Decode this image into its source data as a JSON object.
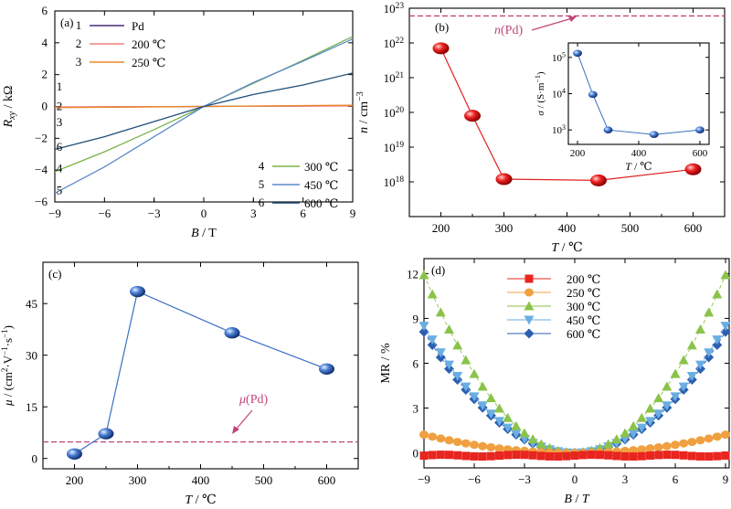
{
  "chart_data": [
    {
      "panel": "(a)",
      "type": "line",
      "xlabel": "B / T",
      "ylabel": "Rxy / kΩ",
      "xlim": [
        -9,
        9
      ],
      "ylim": [
        -6,
        6
      ],
      "xticks": [
        "−9",
        "−6",
        "−3",
        "0",
        "3",
        "6",
        "9"
      ],
      "yticks": [
        "−6",
        "−4",
        "−2",
        "0",
        "2",
        "4",
        "6"
      ],
      "legend_placement": "top-left and bottom-right",
      "series": [
        {
          "id": "1",
          "name": "Pd",
          "color": "#4a2c7c",
          "x": [
            -9,
            -6,
            -3,
            0,
            3,
            6,
            9
          ],
          "y": [
            -0.05,
            -0.03,
            -0.02,
            0,
            0.02,
            0.03,
            0.05
          ]
        },
        {
          "id": "2",
          "name": "200 ℃",
          "color": "#f08080",
          "x": [
            -9,
            -6,
            -3,
            0,
            3,
            6,
            9
          ],
          "y": [
            -0.03,
            -0.02,
            -0.01,
            0,
            0.01,
            0.02,
            0.03
          ]
        },
        {
          "id": "3",
          "name": "250 ℃",
          "color": "#e8882a",
          "x": [
            -9,
            -6,
            -3,
            0,
            3,
            6,
            9
          ],
          "y": [
            -0.08,
            -0.05,
            -0.03,
            0,
            0.03,
            0.06,
            0.08
          ]
        },
        {
          "id": "4",
          "name": "300 ℃",
          "color": "#7ab34a",
          "x": [
            -9,
            -6,
            -3,
            0,
            3,
            6,
            9
          ],
          "y": [
            -4.1,
            -2.85,
            -1.45,
            0,
            1.45,
            2.9,
            4.4
          ]
        },
        {
          "id": "5",
          "name": "450 ℃",
          "color": "#5b8ac7",
          "x": [
            -9,
            -6,
            -3,
            0,
            3,
            6,
            9
          ],
          "y": [
            -5.45,
            -3.8,
            -1.9,
            0,
            1.5,
            2.85,
            4.25
          ]
        },
        {
          "id": "6",
          "name": "600 ℃",
          "color": "#1f4e79",
          "x": [
            -9,
            -6,
            -3,
            0,
            3,
            6,
            9
          ],
          "y": [
            -2.7,
            -1.9,
            -0.95,
            0,
            0.75,
            1.35,
            2.1
          ]
        }
      ],
      "curve_labels": [
        "1",
        "2",
        "3",
        "4",
        "5",
        "6"
      ],
      "legend": [
        {
          "num": "1",
          "text": "Pd"
        },
        {
          "num": "2",
          "text": "200 ℃"
        },
        {
          "num": "3",
          "text": "250 ℃"
        },
        {
          "num": "4",
          "text": "300 ℃"
        },
        {
          "num": "5",
          "text": "450 ℃"
        },
        {
          "num": "6",
          "text": "600 ℃"
        }
      ]
    },
    {
      "panel": "(b)",
      "type": "scatter",
      "xlabel": "T / ℃",
      "ylabel": "n / cm⁻³",
      "yscale": "log",
      "xlim": [
        150,
        650
      ],
      "ylim": [
        1e+17,
        1e+23
      ],
      "xticks": [
        "200",
        "300",
        "400",
        "500",
        "600"
      ],
      "yticks": [
        {
          "base": "10",
          "exp": "18"
        },
        {
          "base": "10",
          "exp": "19"
        },
        {
          "base": "10",
          "exp": "20"
        },
        {
          "base": "10",
          "exp": "21"
        },
        {
          "base": "10",
          "exp": "22"
        },
        {
          "base": "10",
          "exp": "23"
        }
      ],
      "series": [
        {
          "name": "n",
          "color": "#e02020",
          "x": [
            200,
            250,
            300,
            450,
            600
          ],
          "y": [
            7e+21,
            8e+19,
            1.2e+18,
            1.1e+18,
            2.3e+18
          ]
        }
      ],
      "reference_line": {
        "label_prefix": "n",
        "label_suffix": "(Pd)",
        "value": 6e+22,
        "color": "#c2457a"
      },
      "inset": {
        "type": "scatter",
        "xlabel": "T / ℃",
        "ylabel": "σ / (S·m⁻¹)",
        "yscale": "log",
        "xlim": [
          170,
          630
        ],
        "ylim": [
          400,
          250000
        ],
        "xticks": [
          "200",
          "400",
          "600"
        ],
        "yticks": [
          {
            "base": "10",
            "exp": "3"
          },
          {
            "base": "10",
            "exp": "4"
          },
          {
            "base": "10",
            "exp": "5"
          }
        ],
        "series": [
          {
            "name": "σ",
            "color": "#3a6fc4",
            "x": [
              200,
              250,
              300,
              450,
              600
            ],
            "y": [
              130000,
              9500,
              1000,
              750,
              1000
            ]
          }
        ]
      }
    },
    {
      "panel": "(c)",
      "type": "scatter",
      "xlabel": "T / ℃",
      "ylabel": "μ / (cm²·V⁻¹·s⁻¹)",
      "xlim": [
        150,
        650
      ],
      "ylim": [
        -3,
        57
      ],
      "xticks": [
        "200",
        "300",
        "400",
        "500",
        "600"
      ],
      "yticks": [
        "0",
        "15",
        "30",
        "45"
      ],
      "series": [
        {
          "name": "μ",
          "color": "#3a6fc4",
          "x": [
            200,
            250,
            300,
            450,
            600
          ],
          "y": [
            1.3,
            7.2,
            48.5,
            36.5,
            26
          ]
        }
      ],
      "reference_line": {
        "label_prefix": "μ",
        "label_suffix": "(Pd)",
        "value": 4.8,
        "color": "#c2457a"
      }
    },
    {
      "panel": "(d)",
      "type": "line",
      "xlabel": "B / T",
      "ylabel": "MR / %",
      "xlim": [
        -9,
        9
      ],
      "ylim": [
        -1,
        13
      ],
      "xticks": [
        "−9",
        "−6",
        "−3",
        "0",
        "3",
        "6",
        "9"
      ],
      "yticks": [
        "0",
        "3",
        "6",
        "9",
        "12"
      ],
      "legend_placement": "top-center",
      "series": [
        {
          "name": "200 ℃",
          "color": "#e8251f",
          "marker": "square",
          "amp": 0.0,
          "base": -0.18
        },
        {
          "name": "250 ℃",
          "color": "#f0a040",
          "marker": "circle",
          "amp": 1.22,
          "base": 0
        },
        {
          "name": "300 ℃",
          "color": "#8bc34a",
          "marker": "triangle-up",
          "amp": 11.9,
          "base": 0
        },
        {
          "name": "450 ℃",
          "color": "#6aaee3",
          "marker": "triangle-down",
          "amp": 8.5,
          "base": 0
        },
        {
          "name": "600 ℃",
          "color": "#2c5fb0",
          "marker": "diamond",
          "amp": 8.1,
          "base": 0
        }
      ]
    }
  ]
}
